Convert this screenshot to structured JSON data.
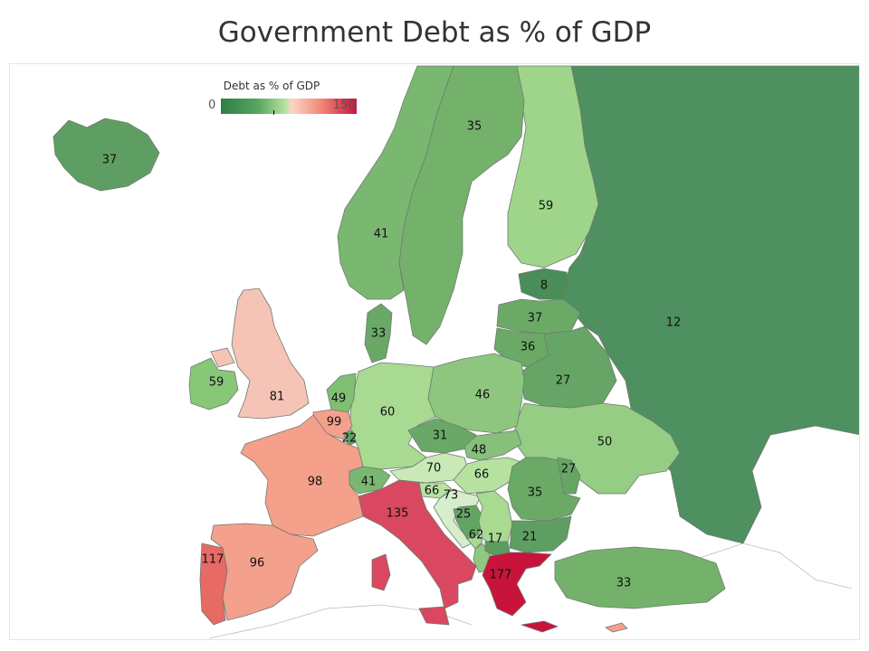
{
  "title": "Government Debt as % of GDP",
  "legend": {
    "title": "Debt as % of GDP",
    "min": "0",
    "max": "150",
    "color_low": "#2e7d46",
    "color_mid": "#b9e3a3",
    "color_high": "#c8143b"
  },
  "countries": [
    {
      "name": "Iceland",
      "value": "37",
      "color": "#5f9e62"
    },
    {
      "name": "Norway",
      "value": "41",
      "color": "#7ab872"
    },
    {
      "name": "Sweden",
      "value": "35",
      "color": "#74b26c"
    },
    {
      "name": "Finland",
      "value": "59",
      "color": "#9fd58a"
    },
    {
      "name": "Russia",
      "value": "12",
      "color": "#4f9060"
    },
    {
      "name": "Estonia",
      "value": "8",
      "color": "#4a8d59"
    },
    {
      "name": "Latvia",
      "value": "37",
      "color": "#6aaa66"
    },
    {
      "name": "Lithuania",
      "value": "36",
      "color": "#6aaa66"
    },
    {
      "name": "Belarus",
      "value": "27",
      "color": "#66a565"
    },
    {
      "name": "Denmark",
      "value": "33",
      "color": "#6aa867"
    },
    {
      "name": "Ireland",
      "value": "59",
      "color": "#86c778"
    },
    {
      "name": "United Kingdom",
      "value": "81",
      "color": "#f5c4b7"
    },
    {
      "name": "Netherlands",
      "value": "49",
      "color": "#7fbf72"
    },
    {
      "name": "Belgium",
      "value": "99",
      "color": "#f3a08c"
    },
    {
      "name": "Luxembourg",
      "value": "22",
      "color": "#5f9e62"
    },
    {
      "name": "Germany",
      "value": "60",
      "color": "#a8da91"
    },
    {
      "name": "Poland",
      "value": "46",
      "color": "#8ec67f"
    },
    {
      "name": "Czech Republic",
      "value": "31",
      "color": "#6aa867"
    },
    {
      "name": "Slovakia",
      "value": "48",
      "color": "#86c07a"
    },
    {
      "name": "Austria",
      "value": "70",
      "color": "#c9e9b7"
    },
    {
      "name": "Hungary",
      "value": "66",
      "color": "#b6e2a0"
    },
    {
      "name": "Ukraine",
      "value": "50",
      "color": "#94cd83"
    },
    {
      "name": "Moldova",
      "value": "27",
      "color": "#66a565"
    },
    {
      "name": "Romania",
      "value": "35",
      "color": "#6aaa66"
    },
    {
      "name": "Bulgaria",
      "value": "21",
      "color": "#5f9e62"
    },
    {
      "name": "France",
      "value": "98",
      "color": "#f4a08b"
    },
    {
      "name": "Switzerland",
      "value": "41",
      "color": "#7ab872"
    },
    {
      "name": "Slovenia",
      "value": "66",
      "color": "#b6e2a0"
    },
    {
      "name": "Croatia",
      "value": "73",
      "color": "#d6eecb"
    },
    {
      "name": "Bosnia and Herzegovina",
      "value": "25",
      "color": "#64a463"
    },
    {
      "name": "Serbia",
      "value": "62",
      "color": "#a8da91"
    },
    {
      "name": "Macedonia",
      "value": "17",
      "color": "#5b9c5f"
    },
    {
      "name": "Montenegro",
      "value": "",
      "color": "#a8da91"
    },
    {
      "name": "Albania",
      "value": "",
      "color": "#8fc97f"
    },
    {
      "name": "Italy",
      "value": "135",
      "color": "#d94860"
    },
    {
      "name": "Spain",
      "value": "96",
      "color": "#f3a08c"
    },
    {
      "name": "Portugal",
      "value": "117",
      "color": "#e76a64"
    },
    {
      "name": "Greece",
      "value": "177",
      "color": "#c8143b"
    },
    {
      "name": "Turkey",
      "value": "33",
      "color": "#74b26c"
    },
    {
      "name": "Cyprus",
      "value": "",
      "color": "#f3a08c"
    }
  ]
}
